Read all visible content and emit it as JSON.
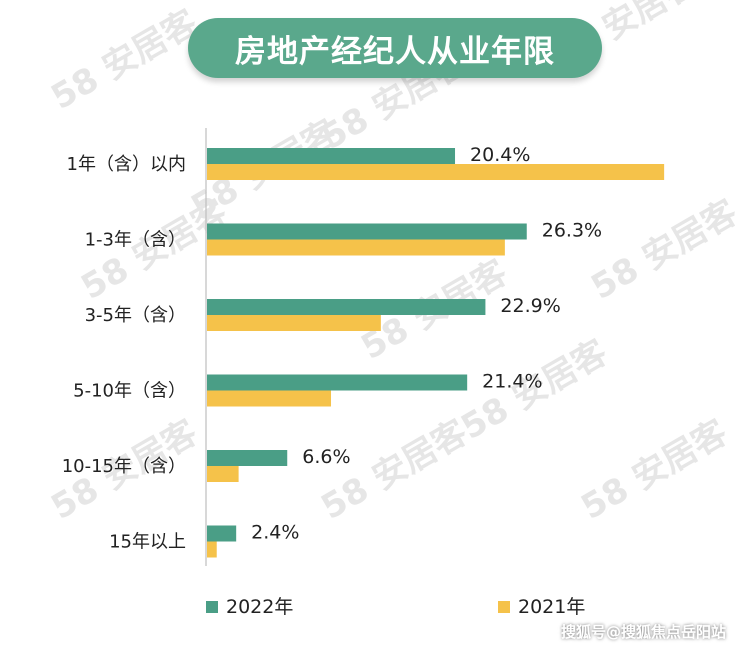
{
  "title": "房地产经纪人从业年限",
  "colors": {
    "title_bg": "#5aa88c",
    "series_2022": "#4a9e86",
    "series_2021": "#f5c24a",
    "axis": "#bdbdbd",
    "text": "#222222",
    "watermark": "#e6e6e6"
  },
  "watermark": {
    "brand": "安居客",
    "number": "58"
  },
  "credit": "搜狐号@搜狐焦点岳阳站",
  "chart_data": {
    "type": "bar",
    "orientation": "horizontal",
    "categories": [
      "1年（含）以内",
      "1-3年（含）",
      "3-5年（含）",
      "5-10年（含）",
      "10-15年（含）",
      "15年以上"
    ],
    "series": [
      {
        "name": "2022年",
        "values": [
          20.4,
          26.3,
          22.9,
          21.4,
          6.6,
          2.4
        ],
        "color": "#4a9e86",
        "labels": [
          "20.4%",
          "26.3%",
          "22.9%",
          "21.4%",
          "6.6%",
          "2.4%"
        ]
      },
      {
        "name": "2021年",
        "values": [
          37.6,
          24.5,
          14.3,
          10.2,
          2.6,
          0.8
        ],
        "color": "#f5c24a"
      }
    ],
    "xlim": [
      0,
      38
    ],
    "legend_position": "bottom",
    "grid": false
  }
}
